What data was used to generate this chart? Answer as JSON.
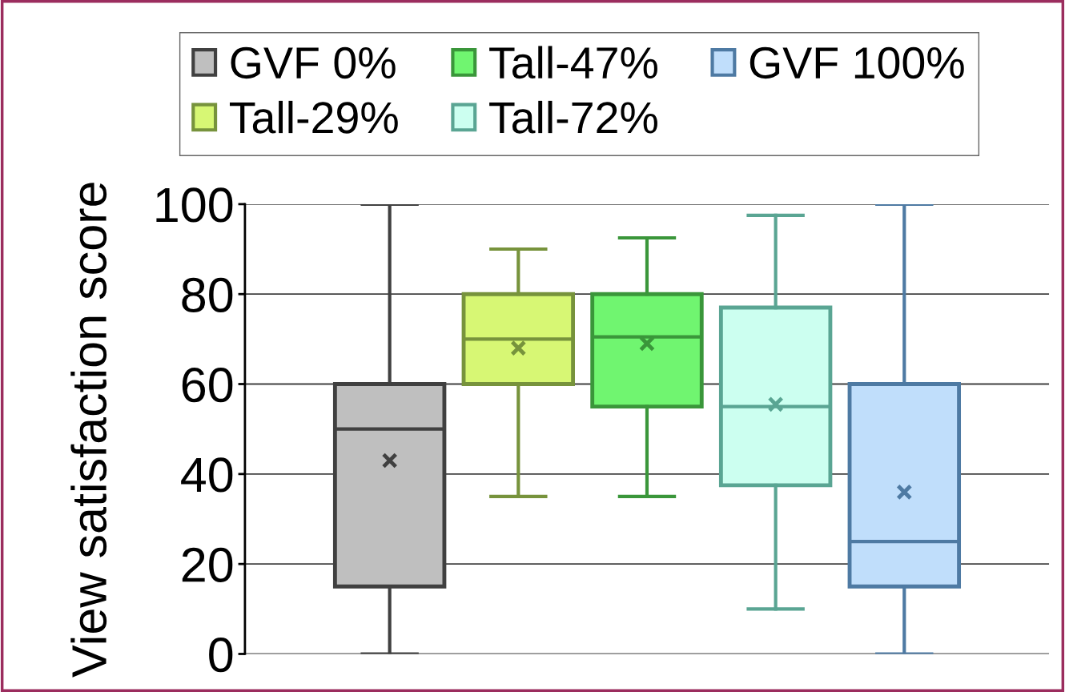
{
  "chart_data": {
    "type": "box",
    "ylabel": "View satisfaction score",
    "categories": [
      null
    ],
    "ylim": [
      0,
      100
    ],
    "yticks": [
      0,
      20,
      40,
      60,
      80,
      100
    ],
    "grid": "y",
    "legend": "top",
    "marker": "cross",
    "series": [
      {
        "name": "GVF 0%",
        "color": "#404040",
        "colors": [
          "#bfbfbf"
        ],
        "boxes": [
          {
            "low": 0,
            "q1": 15,
            "median": 50,
            "q3": 60,
            "high": 100,
            "mean": 43
          }
        ]
      },
      {
        "name": "Tall-29%",
        "color": "#77933c",
        "colors": [
          "#d7f774"
        ],
        "boxes": [
          {
            "low": 35,
            "q1": 60,
            "median": 70,
            "q3": 80,
            "high": 90,
            "mean": 68
          }
        ]
      },
      {
        "name": "Tall-47%",
        "color": "#3a963a",
        "colors": [
          "#70f570"
        ],
        "boxes": [
          {
            "low": 35,
            "q1": 55,
            "median": 70.5,
            "q3": 80,
            "high": 92.5,
            "mean": 69
          }
        ]
      },
      {
        "name": "Tall-72%",
        "color": "#5aa593",
        "colors": [
          "#ccfff0"
        ],
        "boxes": [
          {
            "low": 10,
            "q1": 37.5,
            "median": 55,
            "q3": 77,
            "high": 97.5,
            "mean": 55.5
          }
        ]
      },
      {
        "name": "GVF 100%",
        "color": "#4e7aa3",
        "colors": [
          "#c0defb"
        ],
        "boxes": [
          {
            "low": 0,
            "q1": 15,
            "median": 25,
            "q3": 60,
            "high": 100,
            "mean": 36
          }
        ]
      }
    ]
  }
}
